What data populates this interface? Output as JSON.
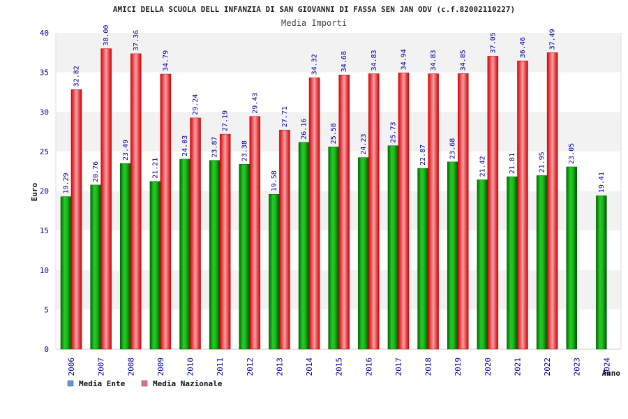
{
  "chart_data": {
    "type": "bar",
    "title": "AMICI DELLA SCUOLA DELL INFANZIA DI SAN GIOVANNI DI FASSA SEN JAN ODV (c.f.82002110227)",
    "subtitle": "Media Importi",
    "xlabel": "Anno",
    "ylabel": "Euro",
    "ylim": [
      0,
      40
    ],
    "yticks": [
      "0",
      "5",
      "10",
      "15",
      "20",
      "25",
      "30",
      "35",
      "40"
    ],
    "grid": "horizontal bands",
    "legend_position": "bottom-left",
    "categories": [
      "2006",
      "2007",
      "2008",
      "2009",
      "2010",
      "2011",
      "2012",
      "2013",
      "2014",
      "2015",
      "2016",
      "2017",
      "2018",
      "2019",
      "2020",
      "2021",
      "2022",
      "2023",
      "2024"
    ],
    "series": [
      {
        "name": "Media Ente",
        "color": "#00a000",
        "legend_color": "#5b9bd5",
        "values": [
          19.29,
          20.76,
          23.49,
          21.21,
          24.03,
          23.87,
          23.38,
          19.58,
          26.16,
          25.58,
          24.23,
          25.73,
          22.87,
          23.68,
          21.42,
          21.81,
          21.95,
          23.05,
          19.41
        ],
        "labels": [
          "19.29",
          "20.76",
          "23.49",
          "21.21",
          "24.03",
          "23.87",
          "23.38",
          "19.58",
          "26.16",
          "25.58",
          "24.23",
          "25.73",
          "22.87",
          "23.68",
          "21.42",
          "21.81",
          "21.95",
          "23.05",
          "19.41"
        ]
      },
      {
        "name": "Media Nazionale",
        "color": "#e02020",
        "legend_color": "#e06aa0",
        "values": [
          32.82,
          38.0,
          37.36,
          34.79,
          29.24,
          27.19,
          29.43,
          27.71,
          34.32,
          34.68,
          34.83,
          34.94,
          34.83,
          34.85,
          37.05,
          36.46,
          37.49,
          null,
          null
        ],
        "labels": [
          "32.82",
          "38.00",
          "37.36",
          "34.79",
          "29.24",
          "27.19",
          "29.43",
          "27.71",
          "34.32",
          "34.68",
          "34.83",
          "34.94",
          "34.83",
          "34.85",
          "37.05",
          "36.46",
          "37.49",
          "",
          ""
        ]
      }
    ]
  }
}
